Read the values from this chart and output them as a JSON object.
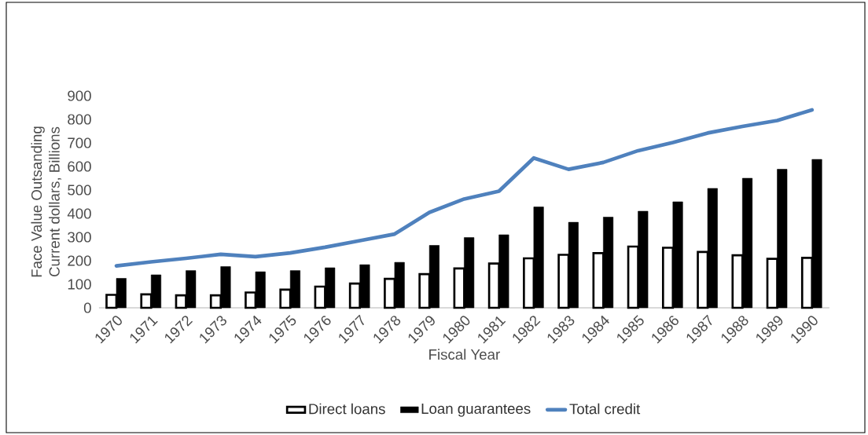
{
  "chart_data": {
    "type": "bar",
    "xlabel": "Fiscal Year",
    "ylabel": "Face  Value Outsanding\nCurrent dollars, Billions",
    "categories": [
      "1970",
      "1971",
      "1972",
      "1973",
      "1974",
      "1975",
      "1976",
      "1977",
      "1978",
      "1979",
      "1980",
      "1981",
      "1982",
      "1983",
      "1984",
      "1985",
      "1986",
      "1987",
      "1988",
      "1989",
      "1990"
    ],
    "series": [
      {
        "name": "Direct loans",
        "color": "#000000",
        "values": [
          55,
          57,
          53,
          53,
          65,
          77,
          90,
          103,
          123,
          143,
          167,
          188,
          210,
          225,
          232,
          260,
          255,
          237,
          223,
          208,
          212
        ]
      },
      {
        "name": "Loan guarantees",
        "color": "#000000",
        "values": [
          125,
          140,
          158,
          175,
          153,
          158,
          170,
          183,
          193,
          265,
          298,
          310,
          428,
          363,
          385,
          410,
          450,
          507,
          550,
          588,
          630
        ]
      },
      {
        "name": "Total credit",
        "type": "line",
        "color": "#4f81bd",
        "values": [
          178,
          195,
          210,
          227,
          217,
          233,
          257,
          285,
          313,
          405,
          462,
          495,
          636,
          588,
          617,
          667,
          702,
          742,
          770,
          795,
          840
        ]
      }
    ],
    "ylim": [
      0,
      900
    ],
    "yticks": [
      0,
      100,
      200,
      300,
      400,
      500,
      600,
      700,
      800,
      900
    ],
    "grid": false,
    "legend": "bottom"
  }
}
